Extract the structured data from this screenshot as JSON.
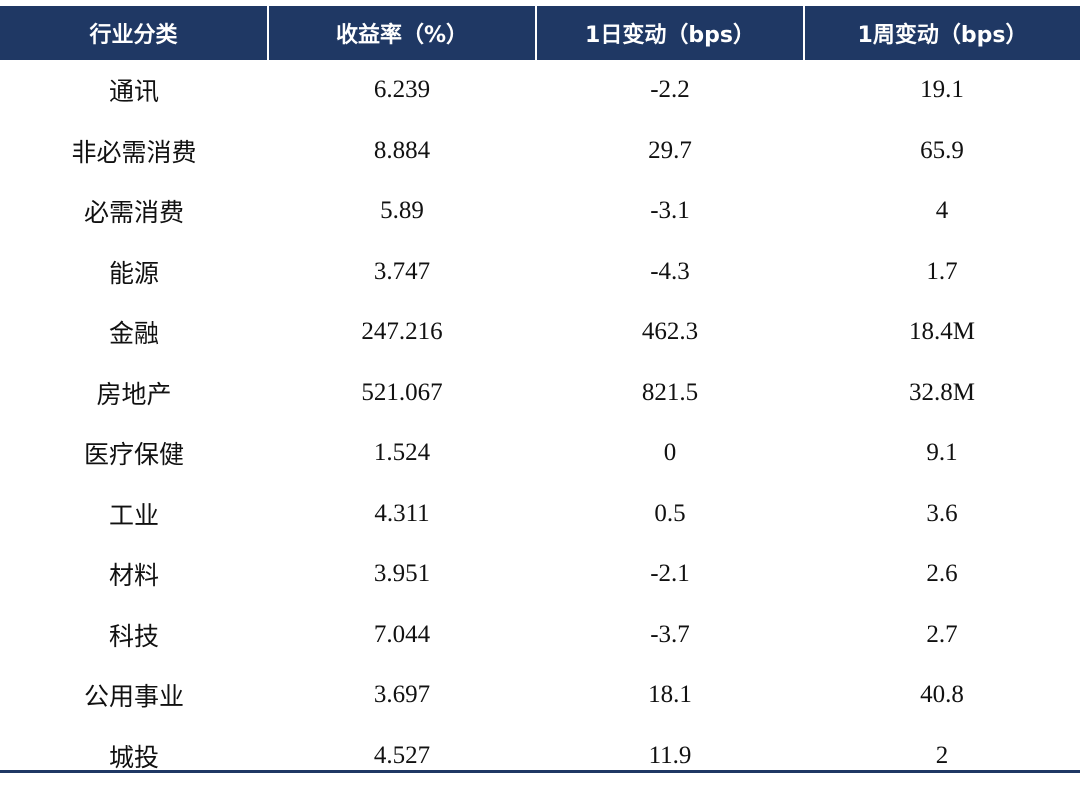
{
  "table": {
    "headers": [
      "行业分类",
      "收益率（%）",
      "1日变动（bps）",
      "1周变动（bps）"
    ],
    "rows": [
      {
        "industry": "通讯",
        "yield": "6.239",
        "change_1d": "-2.2",
        "change_1w": "19.1"
      },
      {
        "industry": "非必需消费",
        "yield": "8.884",
        "change_1d": "29.7",
        "change_1w": "65.9"
      },
      {
        "industry": "必需消费",
        "yield": "5.89",
        "change_1d": "-3.1",
        "change_1w": "4"
      },
      {
        "industry": "能源",
        "yield": "3.747",
        "change_1d": "-4.3",
        "change_1w": "1.7"
      },
      {
        "industry": "金融",
        "yield": "247.216",
        "change_1d": "462.3",
        "change_1w": "18.4M"
      },
      {
        "industry": "房地产",
        "yield": "521.067",
        "change_1d": "821.5",
        "change_1w": "32.8M"
      },
      {
        "industry": "医疗保健",
        "yield": "1.524",
        "change_1d": "0",
        "change_1w": "9.1"
      },
      {
        "industry": "工业",
        "yield": "4.311",
        "change_1d": "0.5",
        "change_1w": "3.6"
      },
      {
        "industry": "材料",
        "yield": "3.951",
        "change_1d": "-2.1",
        "change_1w": "2.6"
      },
      {
        "industry": "科技",
        "yield": "7.044",
        "change_1d": "-3.7",
        "change_1w": "2.7"
      },
      {
        "industry": "公用事业",
        "yield": "3.697",
        "change_1d": "18.1",
        "change_1w": "40.8"
      },
      {
        "industry": "城投",
        "yield": "4.527",
        "change_1d": "11.9",
        "change_1w": "2"
      }
    ]
  },
  "colors": {
    "header_bg": "#1f3864",
    "header_text": "#ffffff",
    "body_text": "#111111"
  }
}
